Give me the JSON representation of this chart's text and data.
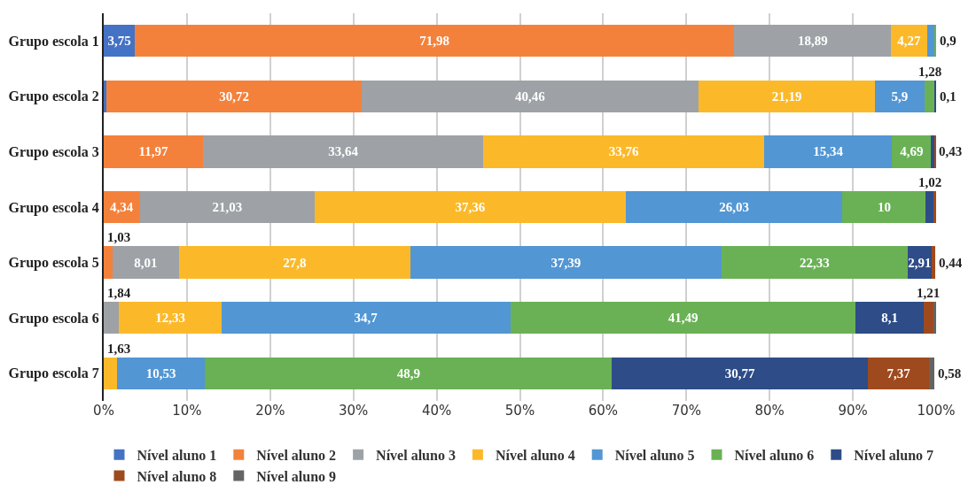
{
  "chart_data": {
    "type": "bar",
    "orientation": "horizontal",
    "stacked": true,
    "categories": [
      "Grupo escola 1",
      "Grupo escola 2",
      "Grupo escola 3",
      "Grupo escola 4",
      "Grupo escola 5",
      "Grupo escola 6",
      "Grupo escola 7"
    ],
    "series": [
      {
        "name": "Nível aluno 1",
        "color": "#4472c4",
        "values": [
          3.75,
          0.3,
          null,
          null,
          null,
          null,
          null
        ],
        "value_labels": [
          "3,75",
          null,
          null,
          null,
          null,
          null,
          null
        ]
      },
      {
        "name": "Nível aluno 2",
        "color": "#f4813b",
        "values": [
          71.98,
          30.72,
          11.97,
          4.34,
          1.03,
          null,
          null
        ],
        "value_labels": [
          "71,98",
          "30,72",
          "11,97",
          "4,34",
          "1,03",
          null,
          null
        ]
      },
      {
        "name": "Nível aluno 3",
        "color": "#9ea2a6",
        "values": [
          18.89,
          40.46,
          33.64,
          21.03,
          8.01,
          1.84,
          null
        ],
        "value_labels": [
          "18,89",
          "40,46",
          "33,64",
          "21,03",
          "8,01",
          "1,84",
          null
        ]
      },
      {
        "name": "Nível aluno 4",
        "color": "#fbb92a",
        "values": [
          4.27,
          21.19,
          33.76,
          37.36,
          27.8,
          12.33,
          1.63
        ],
        "value_labels": [
          "4,27",
          "21,19",
          "33,76",
          "37,36",
          "27,8",
          "12,33",
          "1,63"
        ]
      },
      {
        "name": "Nível aluno 5",
        "color": "#5296d4",
        "values": [
          0.9,
          5.9,
          15.34,
          26.03,
          37.39,
          34.7,
          10.53
        ],
        "value_labels": [
          "0,9",
          "5,9",
          "15,34",
          "26,03",
          "37,39",
          "34,7",
          "10,53"
        ]
      },
      {
        "name": "Nível aluno 6",
        "color": "#6ab155",
        "values": [
          0.2,
          1.28,
          4.69,
          10,
          22.33,
          41.49,
          48.9
        ],
        "value_labels": [
          null,
          "1,28",
          "4,69",
          "10",
          "22,33",
          "41,49",
          "48,9"
        ]
      },
      {
        "name": "Nível aluno 7",
        "color": "#2e4c87",
        "values": [
          null,
          0.1,
          0.43,
          1.02,
          2.91,
          8.1,
          30.77
        ],
        "value_labels": [
          null,
          "0,1",
          "0,43",
          "1,02",
          "2,91",
          "8,1",
          "30,77"
        ]
      },
      {
        "name": "Nível aluno 8",
        "color": "#9e4a1e",
        "values": [
          null,
          null,
          0.1,
          0.2,
          0.44,
          1.21,
          7.37
        ],
        "value_labels": [
          null,
          null,
          null,
          null,
          "0,44",
          "1,21",
          "7,37"
        ]
      },
      {
        "name": "Nível aluno 9",
        "color": "#646464",
        "values": [
          null,
          null,
          null,
          null,
          null,
          0.3,
          0.58
        ],
        "value_labels": [
          null,
          null,
          null,
          null,
          null,
          null,
          "0,58"
        ]
      }
    ],
    "xlim": [
      0,
      100
    ],
    "xticks": [
      {
        "value": 0,
        "label": "0%"
      },
      {
        "value": 10,
        "label": "10%"
      },
      {
        "value": 20,
        "label": "20%"
      },
      {
        "value": 30,
        "label": "30%"
      },
      {
        "value": 40,
        "label": "40%"
      },
      {
        "value": 50,
        "label": "50%"
      },
      {
        "value": 60,
        "label": "60%"
      },
      {
        "value": 70,
        "label": "70%"
      },
      {
        "value": 80,
        "label": "80%"
      },
      {
        "value": 90,
        "label": "90%"
      },
      {
        "value": 100,
        "label": "100%"
      }
    ],
    "grid": "x",
    "legend": "bottom"
  }
}
